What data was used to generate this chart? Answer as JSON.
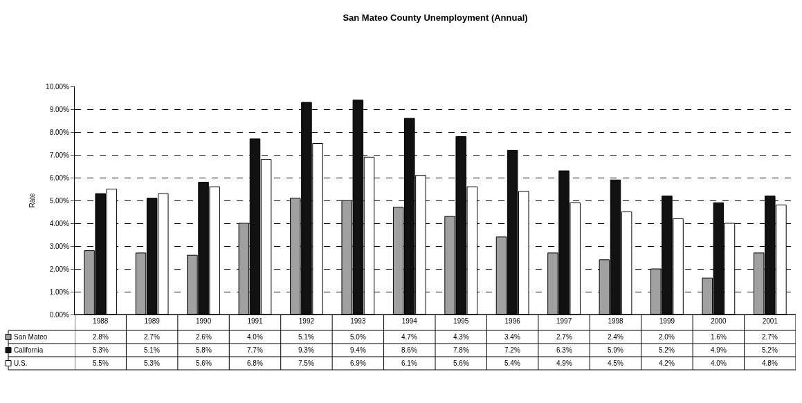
{
  "chart_data": {
    "type": "bar",
    "title": "San Mateo County Unemployment (Annual)",
    "ylabel": "Rate",
    "categories": [
      "1988",
      "1989",
      "1990",
      "1991",
      "1992",
      "1993",
      "1994",
      "1995",
      "1996",
      "1997",
      "1998",
      "1999",
      "2000",
      "2001"
    ],
    "series": [
      {
        "name": "San Mateo",
        "color": "#a0a0a0",
        "values": [
          2.8,
          2.7,
          2.6,
          4.0,
          5.1,
          5.0,
          4.7,
          4.3,
          3.4,
          2.7,
          2.4,
          2.0,
          1.6,
          2.7
        ],
        "value_labels": [
          "2.8%",
          "2.7%",
          "2.6%",
          "4.0%",
          "5.1%",
          "5.0%",
          "4.7%",
          "4.3%",
          "3.4%",
          "2.7%",
          "2.4%",
          "2.0%",
          "1.6%",
          "2.7%"
        ]
      },
      {
        "name": "California",
        "color": "#111111",
        "values": [
          5.3,
          5.1,
          5.8,
          7.7,
          9.3,
          9.4,
          8.6,
          7.8,
          7.2,
          6.3,
          5.9,
          5.2,
          4.9,
          5.2
        ],
        "value_labels": [
          "5.3%",
          "5.1%",
          "5.8%",
          "7.7%",
          "9.3%",
          "9.4%",
          "8.6%",
          "7.8%",
          "7.2%",
          "6.3%",
          "5.9%",
          "5.2%",
          "4.9%",
          "5.2%"
        ]
      },
      {
        "name": "U.S.",
        "color": "#ffffff",
        "values": [
          5.5,
          5.3,
          5.6,
          6.8,
          7.5,
          6.9,
          6.1,
          5.6,
          5.4,
          4.9,
          4.5,
          4.2,
          4.0,
          4.8
        ],
        "value_labels": [
          "5.5%",
          "5.3%",
          "5.6%",
          "6.8%",
          "7.5%",
          "6.9%",
          "6.1%",
          "5.6%",
          "5.4%",
          "4.9%",
          "4.5%",
          "4.2%",
          "4.0%",
          "4.8%"
        ]
      }
    ],
    "ylim": [
      0,
      10
    ],
    "yticks": [
      {
        "value": 0,
        "label": "0.00%"
      },
      {
        "value": 1,
        "label": "1.00%"
      },
      {
        "value": 2,
        "label": "2.00%"
      },
      {
        "value": 3,
        "label": "3.00%"
      },
      {
        "value": 4,
        "label": "4.00%"
      },
      {
        "value": 5,
        "label": "5.00%"
      },
      {
        "value": 6,
        "label": "6.00%"
      },
      {
        "value": 7,
        "label": "7.00%"
      },
      {
        "value": 8,
        "label": "8.00%"
      },
      {
        "value": 9,
        "label": "9.00%"
      },
      {
        "value": 10,
        "label": "10.00%"
      }
    ],
    "grid": "y",
    "legend": "bottom left"
  }
}
